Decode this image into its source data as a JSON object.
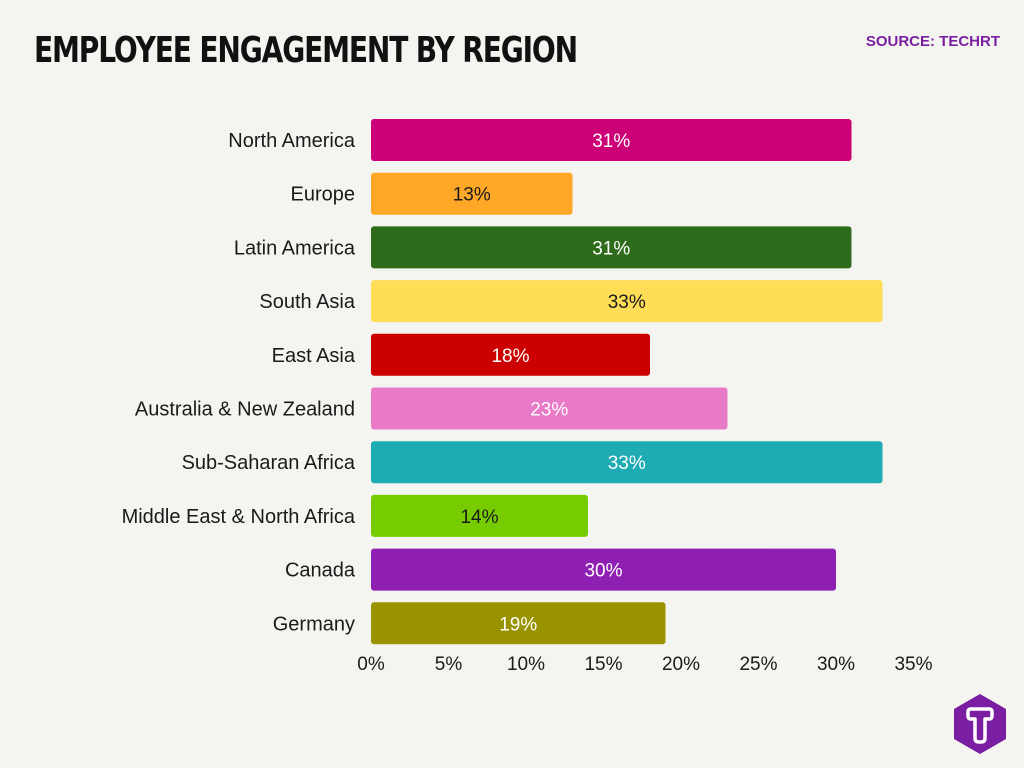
{
  "header": {
    "title": "EMPLOYEE ENGAGEMENT BY REGION",
    "source": "SOURCE: TECHRT"
  },
  "chart_data": {
    "type": "bar",
    "orientation": "horizontal",
    "title": "EMPLOYEE ENGAGEMENT BY REGION",
    "xlabel": "",
    "ylabel": "",
    "xlim": [
      0,
      35
    ],
    "x_ticks": [
      "0%",
      "5%",
      "10%",
      "15%",
      "20%",
      "25%",
      "30%",
      "35%"
    ],
    "grid": false,
    "categories": [
      "North America",
      "Europe",
      "Latin America",
      "South Asia",
      "East Asia",
      "Australia & New Zealand",
      "Sub-Saharan Africa",
      "Middle East & North Africa",
      "Canada",
      "Germany"
    ],
    "values": [
      31,
      13,
      31,
      33,
      18,
      23,
      33,
      14,
      30,
      19
    ],
    "labels": [
      "31%",
      "13%",
      "31%",
      "33%",
      "18%",
      "23%",
      "33%",
      "14%",
      "30%",
      "19%"
    ],
    "colors": [
      "#cc0077",
      "#ffa726",
      "#2e6b1a",
      "#ffdd57",
      "#cc0000",
      "#e87ac8",
      "#1eabb3",
      "#76cc00",
      "#8e1fb2",
      "#999300"
    ],
    "label_colors": [
      "#ffffff",
      "#1a1a1a",
      "#ffffff",
      "#1a1a1a",
      "#ffffff",
      "#ffffff",
      "#ffffff",
      "#1a1a1a",
      "#ffffff",
      "#ffffff"
    ]
  },
  "logo": {
    "color": "#7b1fa2",
    "icon": "techrt-t-logo-icon"
  }
}
